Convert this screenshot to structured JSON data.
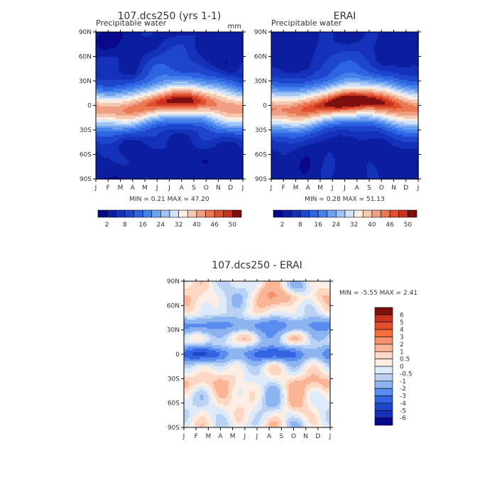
{
  "chart_data": [
    {
      "type": "heatmap",
      "title": "107.dcs250 (yrs 1-1)",
      "subtitle": "Precipitable water",
      "units": "mm",
      "x_ticks": [
        "J",
        "F",
        "M",
        "A",
        "M",
        "J",
        "J",
        "A",
        "S",
        "O",
        "N",
        "D",
        "J"
      ],
      "y_ticks": [
        "90N",
        "60N",
        "30N",
        "0",
        "30S",
        "60S",
        "90S"
      ],
      "min_label": "MIN =",
      "min_value": "0.21",
      "max_label": "MAX =",
      "max_value": "47.20",
      "levels": [
        2,
        5,
        8,
        12,
        16,
        20,
        24,
        28,
        32,
        36,
        40,
        43,
        46,
        48,
        50
      ],
      "level_labels": [
        "2",
        "8",
        "16",
        "24",
        "32",
        "40",
        "46",
        "50"
      ],
      "ylim": [
        -90,
        90
      ],
      "peak": 47.2
    },
    {
      "type": "heatmap",
      "title": "ERAI",
      "subtitle": "Precipitable water",
      "x_ticks": [
        "J",
        "F",
        "M",
        "A",
        "M",
        "J",
        "J",
        "A",
        "S",
        "O",
        "N",
        "D",
        "J"
      ],
      "y_ticks": [
        "90N",
        "60N",
        "30N",
        "0",
        "30S",
        "60S",
        "90S"
      ],
      "min_label": "MIN =",
      "min_value": "0.28",
      "max_label": "MAX =",
      "max_value": "51.13",
      "levels": [
        2,
        5,
        8,
        12,
        16,
        20,
        24,
        28,
        32,
        36,
        40,
        43,
        46,
        48,
        50
      ],
      "level_labels": [
        "2",
        "8",
        "16",
        "24",
        "32",
        "40",
        "46",
        "50"
      ],
      "ylim": [
        -90,
        90
      ],
      "peak": 51.13
    },
    {
      "type": "heatmap",
      "title": "107.dcs250 - ERAI",
      "x_ticks": [
        "J",
        "F",
        "M",
        "A",
        "M",
        "J",
        "J",
        "A",
        "S",
        "O",
        "N",
        "D",
        "J"
      ],
      "y_ticks": [
        "90N",
        "60N",
        "30N",
        "0",
        "30S",
        "60S",
        "90S"
      ],
      "min_label": "MIN =",
      "min_value": "-5.55",
      "max_label": "MAX =",
      "max_value": "2.41",
      "levels": [
        -6,
        -5,
        -4,
        -3,
        -2,
        -1,
        -0.5,
        0,
        0.5,
        1,
        2,
        3,
        4,
        5,
        6
      ],
      "level_labels": [
        "6",
        "5",
        "4",
        "3",
        "2",
        "1",
        "0.5",
        "0",
        "-0.5",
        "-1",
        "-2",
        "-3",
        "-4",
        "-5",
        "-6"
      ],
      "ylim": [
        -90,
        90
      ]
    }
  ],
  "colors": {
    "seq": [
      "#08088a",
      "#0c1ea0",
      "#1432b9",
      "#1e46cd",
      "#2d64e1",
      "#4682eb",
      "#6ea0f0",
      "#a0c3f5",
      "#d2e3fa",
      "#fdeee3",
      "#f5c8af",
      "#f0a082",
      "#eb7855",
      "#e0502d",
      "#c8321e",
      "#7d0f0f"
    ],
    "diff": [
      "#7d0f0f",
      "#c8321e",
      "#e0502d",
      "#f56e3c",
      "#f5916e",
      "#fab496",
      "#fdd7c3",
      "#fdeee3",
      "#dceafa",
      "#bcd2f5",
      "#8cb4f0",
      "#5a8cf0",
      "#3264e1",
      "#1e46cd",
      "#1432b9",
      "#08088a"
    ]
  }
}
